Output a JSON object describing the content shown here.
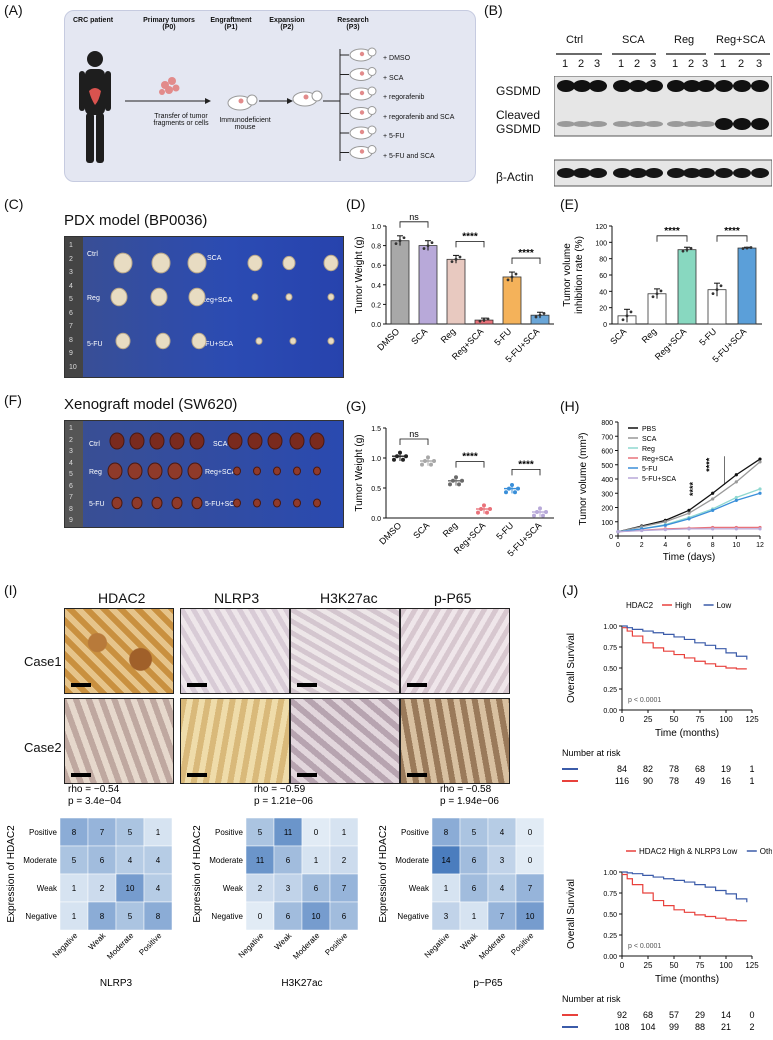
{
  "panels": {
    "A": "(A)",
    "B": "(B)",
    "C": "(C)",
    "D": "(D)",
    "E": "(E)",
    "F": "(F)",
    "G": "(G)",
    "H": "(H)",
    "I": "(I)",
    "J": "(J)"
  },
  "schematic": {
    "stages": [
      {
        "title": "CRC patient",
        "sub": ""
      },
      {
        "title": "Primary tumors",
        "sub": "(P0)"
      },
      {
        "title": "Engraftment",
        "sub": "(P1)"
      },
      {
        "title": "Expansion",
        "sub": "(P2)"
      },
      {
        "title": "Research",
        "sub": "(P3)"
      }
    ],
    "transfer": "Transfer of tumor fragments or cells",
    "mouse": "Immunodeficient mouse",
    "treatments": [
      "+ DMSO",
      "+ SCA",
      "+ regorafenib",
      "+ regorafenib and SCA",
      "+ 5-FU",
      "+ 5-FU and SCA"
    ]
  },
  "western": {
    "groups": [
      "Ctrl",
      "SCA",
      "Reg",
      "Reg+SCA"
    ],
    "lanes": [
      "1",
      "2",
      "3"
    ],
    "rows": [
      "GSDMD",
      "Cleaved GSDMD",
      "β-Actin"
    ]
  },
  "pdx": {
    "title": "PDX model (BP0036)",
    "left_labels": [
      "Ctrl",
      "Reg",
      "5-FU"
    ],
    "right_labels": [
      "SCA",
      "Reg+SCA",
      "5-FU+SCA"
    ],
    "ruler": [
      "1",
      "2",
      "3",
      "4",
      "5",
      "6",
      "7",
      "8",
      "9",
      "10"
    ]
  },
  "xeno": {
    "title": "Xenograft model (SW620)",
    "left_labels": [
      "Ctrl",
      "Reg",
      "5-FU"
    ],
    "right_labels": [
      "SCA",
      "Reg+SCA",
      "5-FU+SCA"
    ],
    "ruler": [
      "1",
      "2",
      "3",
      "4",
      "5",
      "6",
      "7",
      "8",
      "9"
    ]
  },
  "chart_data": [
    {
      "id": "D",
      "type": "bar",
      "categories": [
        "DMSO",
        "SCA",
        "Reg",
        "Reg+SCA",
        "5-FU",
        "5-FU+SCA"
      ],
      "values": [
        0.85,
        0.8,
        0.66,
        0.04,
        0.48,
        0.09
      ],
      "errors": [
        0.05,
        0.05,
        0.04,
        0.02,
        0.05,
        0.03
      ],
      "colors": [
        "#a8a8a8",
        "#b8a9d9",
        "#e8c9c0",
        "#e9727a",
        "#f4b25a",
        "#6aa6d8"
      ],
      "ylabel": "Tumor Weight (g)",
      "ylim": [
        0,
        1.0
      ],
      "yticks": [
        "0.0",
        "0.2",
        "0.4",
        "0.6",
        "0.8",
        "1.0"
      ],
      "annotations": [
        "ns",
        "****",
        "****"
      ]
    },
    {
      "id": "E",
      "type": "bar",
      "categories": [
        "SCA",
        "Reg",
        "Reg+SCA",
        "5-FU",
        "5-FU+SCA"
      ],
      "values": [
        10,
        37,
        91,
        42,
        93
      ],
      "errors": [
        8,
        6,
        3,
        8,
        1
      ],
      "colors": [
        "#ffffff",
        "#ffffff",
        "#88d8c0",
        "#ffffff",
        "#5b9fd9"
      ],
      "ylabel": "Tumor volume inhibition rate (%)",
      "ylim": [
        0,
        120
      ],
      "yticks": [
        "0",
        "20",
        "40",
        "60",
        "80",
        "100",
        "120"
      ],
      "annotations": [
        "****",
        "****"
      ]
    },
    {
      "id": "G",
      "type": "scatter",
      "categories": [
        "DMSO",
        "SCA",
        "Reg",
        "Reg+SCA",
        "5-FU",
        "5-FU+SCA"
      ],
      "values": [
        1.03,
        0.95,
        0.62,
        0.15,
        0.49,
        0.1
      ],
      "colors": [
        "#222222",
        "#a8a8a8",
        "#6a6a6a",
        "#e9727a",
        "#3a8fd9",
        "#b8a9d9"
      ],
      "ylabel": "Tumor Weight (g)",
      "ylim": [
        0,
        1.5
      ],
      "yticks": [
        "0.0",
        "0.5",
        "1.0",
        "1.5"
      ],
      "annotations": [
        "ns",
        "****",
        "****"
      ]
    },
    {
      "id": "H",
      "type": "line",
      "x": [
        0,
        2,
        4,
        6,
        8,
        10,
        12
      ],
      "series": [
        {
          "name": "PBS",
          "color": "#111111",
          "values": [
            30,
            70,
            110,
            180,
            300,
            430,
            540
          ]
        },
        {
          "name": "SCA",
          "color": "#999999",
          "values": [
            30,
            65,
            100,
            160,
            260,
            380,
            520
          ]
        },
        {
          "name": "Reg",
          "color": "#8fd8d0",
          "values": [
            30,
            50,
            80,
            130,
            190,
            270,
            330
          ]
        },
        {
          "name": "Reg+SCA",
          "color": "#e9727a",
          "values": [
            30,
            40,
            50,
            55,
            60,
            60,
            60
          ]
        },
        {
          "name": "5-FU",
          "color": "#3a8fd9",
          "values": [
            30,
            50,
            75,
            120,
            180,
            250,
            300
          ]
        },
        {
          "name": "5-FU+SCA",
          "color": "#b8a9d9",
          "values": [
            30,
            38,
            45,
            50,
            50,
            50,
            50
          ]
        }
      ],
      "xlabel": "Time (days)",
      "ylabel": "Tumor volume (mm³)",
      "ylim": [
        0,
        800
      ],
      "xlim": [
        0,
        12
      ],
      "yticks": [
        "0",
        "100",
        "200",
        "300",
        "400",
        "500",
        "600",
        "700",
        "800"
      ],
      "xticks": [
        "0",
        "2",
        "4",
        "6",
        "8",
        "10",
        "12"
      ],
      "annotations": [
        "****",
        "****"
      ]
    },
    {
      "id": "J1",
      "type": "line",
      "legend_title": "HDAC2",
      "series": [
        {
          "name": "High",
          "color": "#e8413c",
          "x": [
            0,
            5,
            10,
            20,
            30,
            40,
            50,
            60,
            70,
            80,
            90,
            100,
            110,
            120
          ],
          "values": [
            0.98,
            0.94,
            0.88,
            0.8,
            0.74,
            0.7,
            0.66,
            0.62,
            0.58,
            0.55,
            0.52,
            0.5,
            0.49,
            0.49
          ]
        },
        {
          "name": "Low",
          "color": "#3b5ba9",
          "x": [
            0,
            5,
            10,
            20,
            30,
            40,
            50,
            60,
            70,
            80,
            90,
            100,
            110,
            120
          ],
          "values": [
            1.0,
            0.98,
            0.96,
            0.94,
            0.92,
            0.9,
            0.87,
            0.84,
            0.8,
            0.77,
            0.73,
            0.68,
            0.64,
            0.6
          ]
        }
      ],
      "xlabel": "Time (months)",
      "ylabel": "Overall Survival",
      "ylim": [
        0,
        1.0
      ],
      "xlim": [
        0,
        125
      ],
      "xticks": [
        "0",
        "25",
        "50",
        "75",
        "100",
        "125"
      ],
      "yticks": [
        "0.00",
        "0.25",
        "0.50",
        "0.75",
        "1.00"
      ],
      "pvalue": "p < 0.0001",
      "risk_title": "Number at risk",
      "risk": [
        [
          "84",
          "82",
          "78",
          "68",
          "19",
          "1"
        ],
        [
          "116",
          "90",
          "78",
          "49",
          "16",
          "1"
        ]
      ]
    },
    {
      "id": "J2",
      "type": "line",
      "series": [
        {
          "name": "HDAC2 High & NLRP3 Low",
          "color": "#e8413c",
          "x": [
            0,
            5,
            10,
            20,
            30,
            40,
            50,
            60,
            70,
            80,
            90,
            100,
            110,
            120
          ],
          "values": [
            0.97,
            0.92,
            0.85,
            0.75,
            0.66,
            0.6,
            0.55,
            0.52,
            0.49,
            0.47,
            0.45,
            0.43,
            0.42,
            0.42
          ]
        },
        {
          "name": "Others",
          "color": "#3b5ba9",
          "x": [
            0,
            5,
            10,
            20,
            30,
            40,
            50,
            60,
            70,
            80,
            90,
            100,
            110,
            120
          ],
          "values": [
            1.0,
            0.99,
            0.98,
            0.96,
            0.94,
            0.92,
            0.9,
            0.88,
            0.85,
            0.82,
            0.78,
            0.74,
            0.68,
            0.64
          ]
        }
      ],
      "xlabel": "Time (months)",
      "ylabel": "Overall Survival",
      "ylim": [
        0,
        1.0
      ],
      "xlim": [
        0,
        125
      ],
      "xticks": [
        "0",
        "25",
        "50",
        "75",
        "100",
        "125"
      ],
      "yticks": [
        "0.00",
        "0.25",
        "0.50",
        "0.75",
        "1.00"
      ],
      "pvalue": "p < 0.0001",
      "risk_title": "Number at risk",
      "risk": [
        [
          "92",
          "68",
          "57",
          "29",
          "14",
          "0"
        ],
        [
          "108",
          "104",
          "99",
          "88",
          "21",
          "2"
        ]
      ]
    },
    {
      "id": "I1",
      "type": "heatmap",
      "rows": [
        "Positive",
        "Moderate",
        "Weak",
        "Negative"
      ],
      "cols": [
        "Negative",
        "Weak",
        "Moderate",
        "Positive"
      ],
      "values": [
        [
          8,
          7,
          5,
          1
        ],
        [
          5,
          6,
          4,
          4
        ],
        [
          1,
          2,
          10,
          4
        ],
        [
          1,
          8,
          5,
          8
        ]
      ],
      "xlabel": "NLRP3",
      "ylabel": "Expression of HDAC2",
      "rho": "rho = −0.54",
      "p": "p = 3.4e−04"
    },
    {
      "id": "I2",
      "type": "heatmap",
      "rows": [
        "Positive",
        "Moderate",
        "Weak",
        "Negative"
      ],
      "cols": [
        "Negative",
        "Weak",
        "Moderate",
        "Positive"
      ],
      "values": [
        [
          5,
          11,
          0,
          1
        ],
        [
          11,
          6,
          1,
          2
        ],
        [
          2,
          3,
          6,
          7
        ],
        [
          0,
          6,
          10,
          6
        ]
      ],
      "xlabel": "H3K27ac",
      "ylabel": "Expression of HDAC2",
      "rho": "rho = −0.59",
      "p": "p = 1.21e−06"
    },
    {
      "id": "I3",
      "type": "heatmap",
      "rows": [
        "Positive",
        "Moderate",
        "Weak",
        "Negative"
      ],
      "cols": [
        "Negative",
        "Weak",
        "Moderate",
        "Positive"
      ],
      "values": [
        [
          8,
          5,
          4,
          0
        ],
        [
          14,
          6,
          3,
          0
        ],
        [
          1,
          6,
          4,
          7
        ],
        [
          3,
          1,
          7,
          10
        ]
      ],
      "xlabel": "p−P65",
      "ylabel": "Expression of HDAC2",
      "rho": "rho = −0.58",
      "p": "p = 1.94e−06"
    }
  ],
  "ihc": {
    "columns": [
      "HDAC2",
      "NLRP3",
      "H3K27ac",
      "p-P65"
    ],
    "rows": [
      "Case1",
      "Case2"
    ]
  }
}
